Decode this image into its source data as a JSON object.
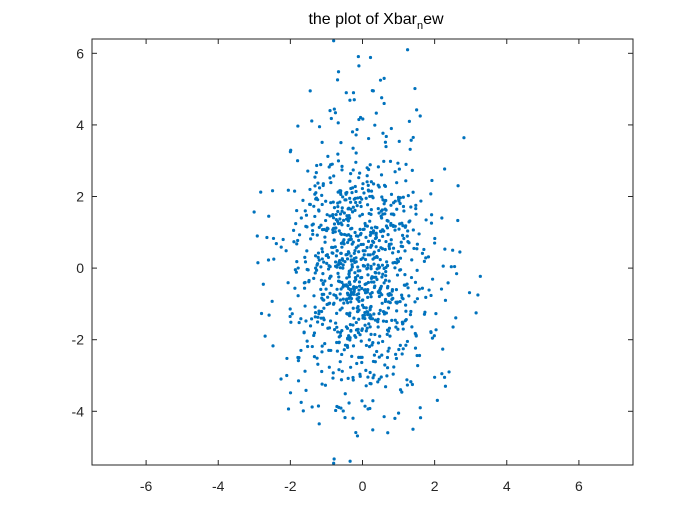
{
  "chart_data": {
    "type": "scatter",
    "title": {
      "prefix": "the plot of Xbar",
      "subscript": "n",
      "suffix": "ew"
    },
    "xlabel": "",
    "ylabel": "",
    "xlim": [
      -7.5,
      7.5
    ],
    "ylim": [
      -5.5,
      6.4
    ],
    "xticks": [
      -6,
      -4,
      -2,
      0,
      2,
      4,
      6
    ],
    "yticks": [
      -4,
      -2,
      0,
      2,
      4,
      6
    ],
    "xtick_labels": [
      "-6",
      "-4",
      "-2",
      "0",
      "2",
      "4",
      "6"
    ],
    "ytick_labels": [
      "-4",
      "-2",
      "0",
      "2",
      "4",
      "6"
    ],
    "grid": false,
    "marker_color": "#0072BD",
    "series": [
      {
        "points_sample": [
          [
            -0.8,
            6.35
          ],
          [
            1.25,
            6.1
          ],
          [
            -0.1,
            5.65
          ],
          [
            0.6,
            5.3
          ],
          [
            0.5,
            5.25
          ],
          [
            -1.45,
            4.95
          ],
          [
            -0.45,
            4.9
          ],
          [
            -0.25,
            4.9
          ],
          [
            0.3,
            4.95
          ],
          [
            -0.9,
            4.4
          ],
          [
            -0.1,
            4.15
          ],
          [
            0.6,
            4.6
          ],
          [
            1.3,
            4.1
          ],
          [
            1.6,
            4.25
          ],
          [
            0.8,
            3.9
          ],
          [
            -1.8,
            3.0
          ],
          [
            -2.0,
            3.25
          ],
          [
            -2.9,
            0.15
          ],
          [
            -2.75,
            -0.45
          ],
          [
            -2.7,
            -1.9
          ],
          [
            -2.6,
            1.45
          ],
          [
            -2.2,
            0.8
          ],
          [
            -2.1,
            -3.0
          ],
          [
            -1.6,
            0.3
          ],
          [
            -1.7,
            -3.75
          ],
          [
            -1.2,
            -4.35
          ],
          [
            -0.8,
            -5.45
          ],
          [
            0.6,
            -4.15
          ],
          [
            0.7,
            -4.6
          ],
          [
            1.0,
            -4.05
          ],
          [
            1.4,
            -4.5
          ],
          [
            1.6,
            -3.9
          ],
          [
            2.0,
            -3.05
          ],
          [
            2.2,
            -2.95
          ],
          [
            2.3,
            -3.3
          ],
          [
            2.4,
            -2.9
          ],
          [
            2.3,
            -0.9
          ],
          [
            2.5,
            0.5
          ],
          [
            2.7,
            0.45
          ],
          [
            2.65,
            2.3
          ],
          [
            3.2,
            -0.75
          ],
          [
            3.15,
            -1.25
          ],
          [
            2.2,
            1.4
          ],
          [
            2.0,
            0.7
          ],
          [
            1.9,
            -1.8
          ]
        ],
        "distribution": {
          "count": 1000,
          "x_center": -0.05,
          "x_spread": 0.95,
          "y_center": 0.0,
          "y_spread": 1.9
        }
      }
    ]
  }
}
